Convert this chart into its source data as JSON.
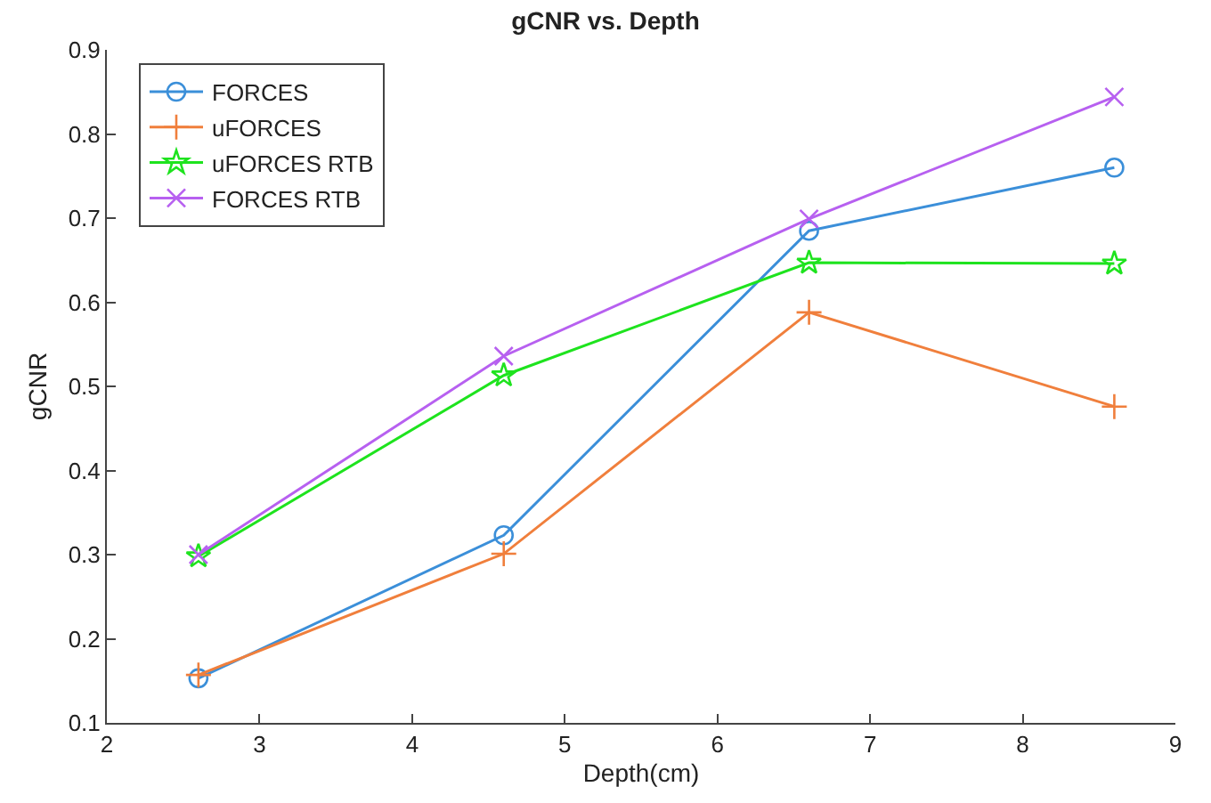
{
  "chart_data": {
    "type": "line",
    "title": "gCNR vs. Depth",
    "xlabel": "Depth(cm)",
    "ylabel": "gCNR",
    "x": [
      2.6,
      4.6,
      6.6,
      8.6
    ],
    "series": [
      {
        "name": "FORCES",
        "color": "#3b8fd9",
        "marker": "circle",
        "values": [
          0.153,
          0.323,
          0.685,
          0.76
        ]
      },
      {
        "name": "uFORCES",
        "color": "#f07f3c",
        "marker": "cross",
        "values": [
          0.157,
          0.301,
          0.588,
          0.476
        ]
      },
      {
        "name": "uFORCES RTB",
        "color": "#1ee31e",
        "marker": "star",
        "values": [
          0.298,
          0.513,
          0.647,
          0.646
        ]
      },
      {
        "name": "FORCES RTB",
        "color": "#b760f0",
        "marker": "x",
        "values": [
          0.3,
          0.536,
          0.699,
          0.844
        ]
      }
    ],
    "xlim": [
      2,
      9
    ],
    "xticks": [
      2,
      3,
      4,
      5,
      6,
      7,
      8,
      9
    ],
    "ylim": [
      0.1,
      0.9
    ],
    "yticks": [
      0.1,
      0.2,
      0.3,
      0.4,
      0.5,
      0.6,
      0.7,
      0.8,
      0.9
    ],
    "legend": "top left",
    "line_style": "solid"
  }
}
